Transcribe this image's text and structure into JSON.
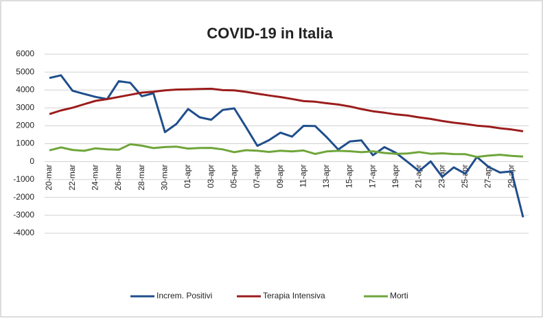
{
  "chart_data": {
    "type": "line",
    "title": "COVID-19 in Italia",
    "categories": [
      "20-mar",
      null,
      "22-mar",
      null,
      "24-mar",
      null,
      "26-mar",
      null,
      "28-mar",
      null,
      "30-mar",
      null,
      "01-apr",
      null,
      "03-apr",
      null,
      "05-apr",
      null,
      "07-apr",
      null,
      "09-apr",
      null,
      "11-apr",
      null,
      "13-apr",
      null,
      "15-apr",
      null,
      "17-apr",
      null,
      "19-apr",
      null,
      "21-apr",
      null,
      "23-apr",
      null,
      "25-apr",
      null,
      "27-apr",
      null,
      "29-apr",
      null
    ],
    "series": [
      {
        "name": "Increm. Positivi",
        "color": "#1f4e8c",
        "values": [
          4670,
          4821,
          3957,
          3780,
          3612,
          3491,
          4492,
          4401,
          3651,
          3815,
          1648,
          2107,
          2937,
          2477,
          2339,
          2886,
          2972,
          1941,
          880,
          1195,
          1615,
          1396,
          1996,
          1984,
          1363,
          675,
          1127,
          1189,
          355,
          809,
          486,
          -20,
          -528,
          10,
          -851,
          -321,
          -680,
          256,
          -290,
          -608,
          -548,
          -3106
        ]
      },
      {
        "name": "Terapia Intensiva",
        "color": "#9b1c1c",
        "values": [
          2655,
          2857,
          3009,
          3204,
          3396,
          3489,
          3612,
          3732,
          3856,
          3906,
          3981,
          4023,
          4035,
          4053,
          4068,
          3994,
          3977,
          3898,
          3792,
          3693,
          3605,
          3497,
          3381,
          3343,
          3260,
          3186,
          3079,
          2936,
          2812,
          2733,
          2635,
          2573,
          2471,
          2384,
          2267,
          2173,
          2102,
          2009,
          1956,
          1863,
          1795,
          1694
        ]
      },
      {
        "name": "Morti",
        "color": "#6fa53a",
        "values": [
          627,
          793,
          651,
          601,
          743,
          683,
          662,
          969,
          889,
          756,
          812,
          837,
          727,
          760,
          766,
          681,
          525,
          636,
          604,
          542,
          610,
          570,
          619,
          431,
          566,
          602,
          578,
          525,
          575,
          482,
          433,
          454,
          534,
          437,
          464,
          420,
          415,
          260,
          333,
          382,
          323,
          285
        ]
      }
    ],
    "ylim": [
      -4000,
      6000
    ],
    "yticks": [
      -4000,
      -3000,
      -2000,
      -1000,
      0,
      1000,
      2000,
      3000,
      4000,
      5000,
      6000
    ],
    "grid": true,
    "legend": "bottom"
  }
}
